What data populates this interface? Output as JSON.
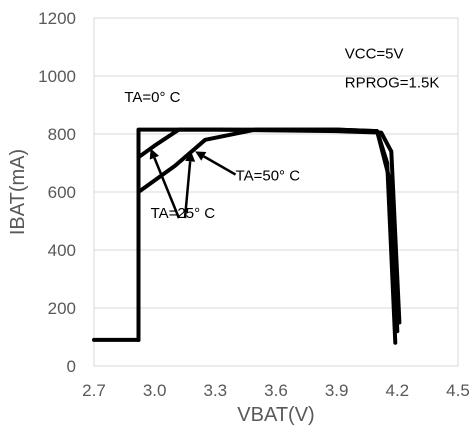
{
  "chart_data": {
    "type": "line",
    "xlabel": "VBAT(V)",
    "ylabel": "IBAT(mA)",
    "xlim": [
      2.7,
      4.5
    ],
    "ylim": [
      0,
      1200
    ],
    "xticks": [
      "2.7",
      "3.0",
      "3.3",
      "3.6",
      "3.9",
      "4.2",
      "4.5"
    ],
    "yticks": [
      "0",
      "200",
      "400",
      "600",
      "800",
      "1000",
      "1200"
    ],
    "grid": "horizontal",
    "series": [
      {
        "name": "TA=0° C",
        "x": [
          2.7,
          2.92,
          2.92,
          3.0,
          3.5,
          3.9,
          4.1,
          4.15,
          4.19
        ],
        "y": [
          90,
          90,
          815,
          815,
          815,
          815,
          810,
          700,
          80
        ]
      },
      {
        "name": "TA=25° C",
        "x": [
          2.92,
          2.92,
          3.1,
          3.25,
          3.5,
          3.9,
          4.1,
          4.17,
          4.2
        ],
        "y": [
          90,
          600,
          690,
          780,
          815,
          815,
          810,
          620,
          120
        ]
      },
      {
        "name": "TA=50° C",
        "x": [
          2.92,
          2.92,
          3.0,
          3.12,
          3.3,
          3.9,
          4.12,
          4.17,
          4.21
        ],
        "y": [
          90,
          720,
          760,
          815,
          815,
          810,
          805,
          740,
          150
        ]
      }
    ],
    "annotations": [
      {
        "text": "TA=0° C",
        "x": 2.85,
        "y": 910
      },
      {
        "text": "TA=25° C",
        "x": 2.98,
        "y": 510
      },
      {
        "text": "TA=50° C",
        "x": 3.4,
        "y": 640
      },
      {
        "text": "VCC=5V",
        "x": 3.94,
        "y": 1060
      },
      {
        "text": "RPROG=1.5K",
        "x": 3.94,
        "y": 960
      }
    ],
    "arrows": [
      {
        "from": [
          3.12,
          510
        ],
        "to": [
          2.98,
          750
        ]
      },
      {
        "from": [
          3.15,
          510
        ],
        "to": [
          3.18,
          740
        ]
      },
      {
        "from": [
          3.4,
          660
        ],
        "to": [
          3.2,
          740
        ]
      }
    ]
  }
}
